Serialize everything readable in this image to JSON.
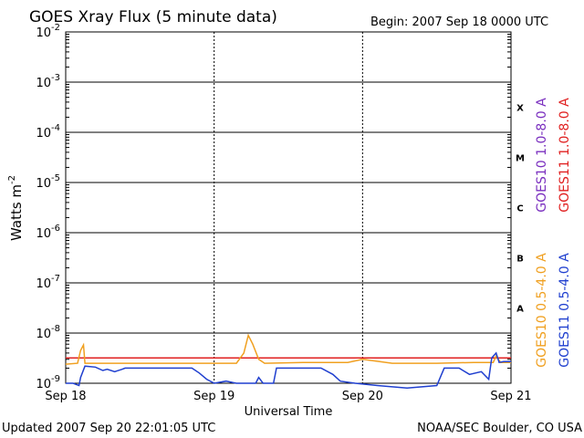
{
  "chart_data": {
    "type": "line",
    "title": "GOES Xray Flux (5 minute data)",
    "begin_label": "Begin:  2007 Sep 18 0000 UTC",
    "xlabel": "Universal Time",
    "ylabel_base": "Watts m",
    "ylabel_exp": "-2",
    "yscale": "log",
    "ylim": [
      1e-09,
      0.01
    ],
    "xlim_days": [
      0,
      3
    ],
    "x_ticks": [
      {
        "day": 0,
        "label": "Sep 18"
      },
      {
        "day": 1,
        "label": "Sep 19"
      },
      {
        "day": 2,
        "label": "Sep 20"
      },
      {
        "day": 3,
        "label": "Sep 21"
      }
    ],
    "y_ticks": [
      {
        "exp": -2,
        "base": "10",
        "sup": "-2"
      },
      {
        "exp": -3,
        "base": "10",
        "sup": "-3"
      },
      {
        "exp": -4,
        "base": "10",
        "sup": "-4"
      },
      {
        "exp": -5,
        "base": "10",
        "sup": "-5"
      },
      {
        "exp": -6,
        "base": "10",
        "sup": "-6"
      },
      {
        "exp": -7,
        "base": "10",
        "sup": "-7"
      },
      {
        "exp": -8,
        "base": "10",
        "sup": "-8"
      },
      {
        "exp": -9,
        "base": "10",
        "sup": "-9"
      }
    ],
    "flare_classes": [
      {
        "label": "X",
        "lo_exp": -4,
        "hi_exp": -3
      },
      {
        "label": "M",
        "lo_exp": -5,
        "hi_exp": -4
      },
      {
        "label": "C",
        "lo_exp": -6,
        "hi_exp": -5
      },
      {
        "label": "B",
        "lo_exp": -7,
        "hi_exp": -6
      },
      {
        "label": "A",
        "lo_exp": -8,
        "hi_exp": -7
      }
    ],
    "series": [
      {
        "name": "GOES10 1.0-8.0 A",
        "color": "#7a2fbf",
        "points": [
          [
            0.0,
            3.2e-09
          ],
          [
            3.0,
            3.2e-09
          ]
        ]
      },
      {
        "name": "GOES11 1.0-8.0 A",
        "color": "#e02020",
        "points": [
          [
            0.0,
            3.2e-09
          ],
          [
            0.5,
            3.2e-09
          ],
          [
            1.0,
            3.2e-09
          ],
          [
            1.5,
            3.2e-09
          ],
          [
            2.0,
            3.2e-09
          ],
          [
            2.5,
            3.2e-09
          ],
          [
            3.0,
            3.2e-09
          ]
        ]
      },
      {
        "name": "GOES10 0.5-4.0 A",
        "color": "#f0a020",
        "points": [
          [
            0.0,
            2.4e-09
          ],
          [
            0.08,
            2.5e-09
          ],
          [
            0.1,
            4.5e-09
          ],
          [
            0.12,
            5.8e-09
          ],
          [
            0.13,
            2.5e-09
          ],
          [
            0.3,
            2.5e-09
          ],
          [
            0.6,
            2.5e-09
          ],
          [
            0.9,
            2.5e-09
          ],
          [
            1.15,
            2.5e-09
          ],
          [
            1.2,
            4e-09
          ],
          [
            1.23,
            9e-09
          ],
          [
            1.26,
            6e-09
          ],
          [
            1.3,
            3e-09
          ],
          [
            1.34,
            2.5e-09
          ],
          [
            1.6,
            2.6e-09
          ],
          [
            1.9,
            2.6e-09
          ],
          [
            2.0,
            3e-09
          ],
          [
            2.2,
            2.5e-09
          ],
          [
            2.5,
            2.5e-09
          ],
          [
            2.75,
            2.6e-09
          ],
          [
            2.88,
            2.6e-09
          ],
          [
            2.9,
            3.5e-09
          ],
          [
            2.93,
            2.6e-09
          ],
          [
            3.0,
            2.6e-09
          ]
        ]
      },
      {
        "name": "GOES11 0.5-4.0 A",
        "color": "#1f3fcf",
        "points": [
          [
            0.0,
            1e-09
          ],
          [
            0.05,
            1e-09
          ],
          [
            0.09,
            9e-10
          ],
          [
            0.1,
            1.3e-09
          ],
          [
            0.13,
            2.2e-09
          ],
          [
            0.2,
            2.1e-09
          ],
          [
            0.25,
            1.8e-09
          ],
          [
            0.28,
            1.9e-09
          ],
          [
            0.33,
            1.7e-09
          ],
          [
            0.38,
            1.9e-09
          ],
          [
            0.4,
            2e-09
          ],
          [
            0.6,
            2e-09
          ],
          [
            0.85,
            2e-09
          ],
          [
            0.9,
            1.6e-09
          ],
          [
            0.95,
            1.2e-09
          ],
          [
            1.0,
            1e-09
          ],
          [
            1.08,
            1.1e-09
          ],
          [
            1.15,
            1e-09
          ],
          [
            1.28,
            1e-09
          ],
          [
            1.3,
            1.3e-09
          ],
          [
            1.33,
            1e-09
          ],
          [
            1.4,
            1e-09
          ],
          [
            1.42,
            2e-09
          ],
          [
            1.6,
            2e-09
          ],
          [
            1.72,
            2e-09
          ],
          [
            1.8,
            1.5e-09
          ],
          [
            1.85,
            1.1e-09
          ],
          [
            1.95,
            1e-09
          ],
          [
            2.1,
            9e-10
          ],
          [
            2.3,
            8e-10
          ],
          [
            2.5,
            9e-10
          ],
          [
            2.55,
            2e-09
          ],
          [
            2.65,
            2e-09
          ],
          [
            2.72,
            1.5e-09
          ],
          [
            2.8,
            1.7e-09
          ],
          [
            2.85,
            1.2e-09
          ],
          [
            2.87,
            3.2e-09
          ],
          [
            2.9,
            4e-09
          ],
          [
            2.92,
            2.6e-09
          ],
          [
            2.95,
            2.7e-09
          ],
          [
            3.0,
            2.7e-09
          ]
        ]
      }
    ]
  },
  "footer": {
    "updated": "Updated 2007 Sep 20 22:01:05 UTC",
    "credit": "NOAA/SEC Boulder, CO USA"
  }
}
